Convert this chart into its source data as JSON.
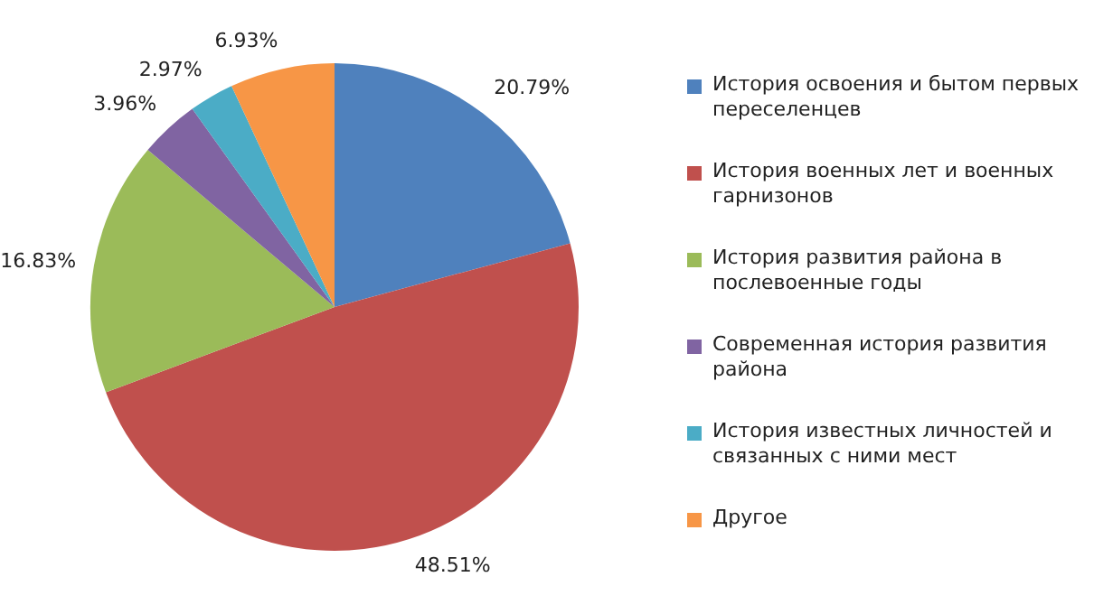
{
  "chart_data": {
    "type": "pie",
    "categories": [
      "История освоения и бытом первых переселенцев",
      "История военных лет и военных гарнизонов",
      "История развития района в послевоенные годы",
      "Современная история развития района",
      "История известных личностей и связанных с ними мест",
      "Другое"
    ],
    "values": [
      20.79,
      48.51,
      16.83,
      3.96,
      2.97,
      6.93
    ],
    "colors": [
      "#4f81bd",
      "#c0504d",
      "#9bbb59",
      "#8064a2",
      "#4bacc6",
      "#f79646"
    ],
    "value_labels": [
      "20.79%",
      "48.51%",
      "16.83%",
      "3.96%",
      "2.97%",
      "6.93%"
    ],
    "legend": "right"
  }
}
